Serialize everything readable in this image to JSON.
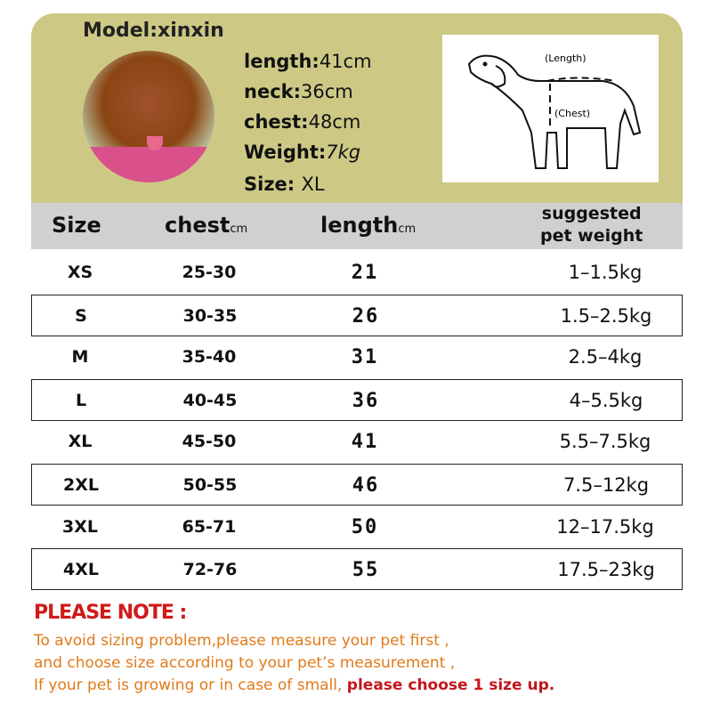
{
  "model": {
    "label": "Model:xinxin",
    "measurements": [
      {
        "label": "length:",
        "value": "41cm"
      },
      {
        "label": "neck:",
        "value": "36cm"
      },
      {
        "label": "chest:",
        "value": "48cm"
      },
      {
        "label": "Weight:",
        "value": "7kg"
      },
      {
        "label": "Size:",
        "value": "XL"
      }
    ]
  },
  "diagram": {
    "length_label": "(Length)",
    "chest_label": "(Chest)"
  },
  "table": {
    "headers": {
      "size": "Size",
      "chest": "chest",
      "chest_unit": "cm",
      "length": "length",
      "length_unit": "cm",
      "weight_line1": "suggested",
      "weight_line2": "pet weight"
    },
    "rows": [
      {
        "size": "XS",
        "chest": "25-30",
        "length": "21",
        "weight": "1–1.5kg"
      },
      {
        "size": "S",
        "chest": "30-35",
        "length": "26",
        "weight": "1.5–2.5kg"
      },
      {
        "size": "M",
        "chest": "35-40",
        "length": "31",
        "weight": "2.5–4kg"
      },
      {
        "size": "L",
        "chest": "40-45",
        "length": "36",
        "weight": "4–5.5kg"
      },
      {
        "size": "XL",
        "chest": "45-50",
        "length": "41",
        "weight": "5.5–7.5kg"
      },
      {
        "size": "2XL",
        "chest": "50-55",
        "length": "46",
        "weight": "7.5–12kg"
      },
      {
        "size": "3XL",
        "chest": "65-71",
        "length": "50",
        "weight": "12–17.5kg"
      },
      {
        "size": "4XL",
        "chest": "72-76",
        "length": "55",
        "weight": "17.5–23kg"
      }
    ]
  },
  "note": {
    "title": "PLEASE NOTE :",
    "line1": "To avoid sizing problem,please measure your pet first ,",
    "line2": "and choose size according to your pet’s measurement ,",
    "line3": "If your pet is growing or in case of small, ",
    "line3_emphasis": "please choose 1 size up."
  },
  "colors": {
    "panel": "#cdc985",
    "header": "#d0d0d0",
    "note_title": "#d01a1a",
    "note_text": "#e07a1a"
  }
}
